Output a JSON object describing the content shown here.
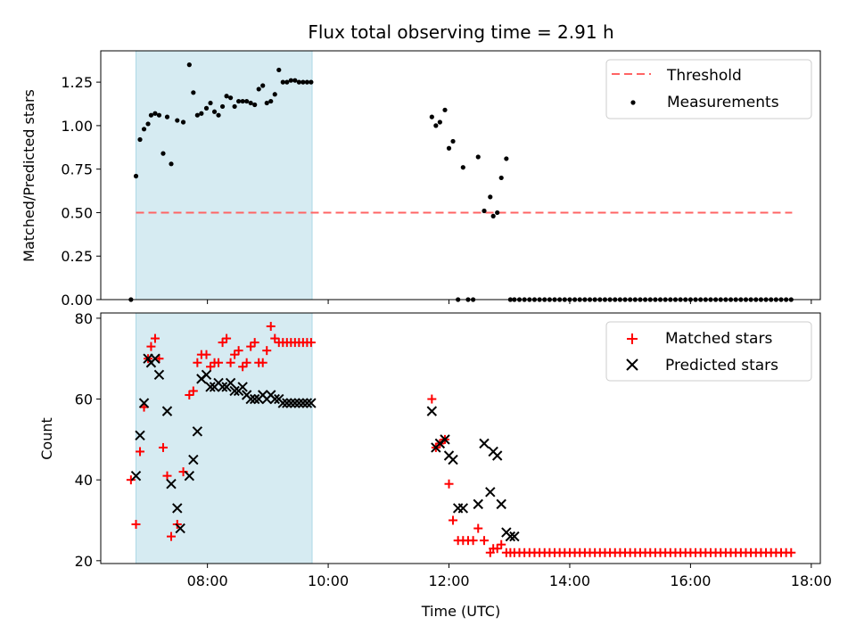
{
  "chart_data": [
    {
      "type": "scatter",
      "title": "Flux total observing time = 2.91 h",
      "xlabel": "",
      "ylabel": "Matched/Predicted stars",
      "xlim": [
        "06:14",
        "18:09"
      ],
      "ylim": [
        0,
        1.43
      ],
      "yticks": [
        "0.00",
        "0.25",
        "0.50",
        "0.75",
        "1.00",
        "1.25"
      ],
      "xticks": [
        "08:00",
        "10:00",
        "12:00",
        "14:00",
        "16:00",
        "18:00"
      ],
      "show_xticklabels": false,
      "shaded_interval": [
        "06:49",
        "09:44"
      ],
      "shaded_color": "#add8e6",
      "legend_position": "top-right",
      "threshold": {
        "name": "Threshold",
        "value": 0.5,
        "x_range": [
          "06:49",
          "17:41"
        ],
        "color": "#ff6464"
      },
      "series": [
        {
          "name": "Measurements",
          "color": "#000000",
          "marker": "dot",
          "x": [
            "06:44",
            "06:49",
            "06:53",
            "06:57",
            "07:01",
            "07:04",
            "07:08",
            "07:12",
            "07:16",
            "07:20",
            "07:24",
            "07:30",
            "07:36",
            "07:42",
            "07:46",
            "07:50",
            "07:54",
            "07:59",
            "08:03",
            "08:07",
            "08:11",
            "08:15",
            "08:19",
            "08:23",
            "08:27",
            "08:31",
            "08:35",
            "08:39",
            "08:43",
            "08:47",
            "08:51",
            "08:55",
            "08:59",
            "09:03",
            "09:07",
            "09:11",
            "09:15",
            "09:19",
            "09:23",
            "09:27",
            "09:31",
            "09:35",
            "09:39",
            "09:43",
            "11:43",
            "11:47",
            "11:51",
            "11:56",
            "12:00",
            "12:04",
            "12:09",
            "12:14",
            "12:19",
            "12:24",
            "12:29",
            "12:35",
            "12:41",
            "12:44",
            "12:48",
            "12:52",
            "12:57",
            "13:01",
            "13:05",
            "13:10",
            "13:15",
            "13:20",
            "13:25",
            "13:30",
            "13:35",
            "13:40",
            "13:45",
            "13:50",
            "13:55",
            "14:00",
            "14:05",
            "14:10",
            "14:15",
            "14:20",
            "14:25",
            "14:30",
            "14:35",
            "14:40",
            "14:45",
            "14:50",
            "14:55",
            "15:00",
            "15:05",
            "15:10",
            "15:15",
            "15:20",
            "15:25",
            "15:30",
            "15:35",
            "15:40",
            "15:45",
            "15:50",
            "15:55",
            "16:00",
            "16:05",
            "16:10",
            "16:15",
            "16:20",
            "16:25",
            "16:30",
            "16:35",
            "16:40",
            "16:45",
            "16:50",
            "16:55",
            "17:00",
            "17:05",
            "17:10",
            "17:15",
            "17:20",
            "17:25",
            "17:30",
            "17:35",
            "17:40"
          ],
          "y": [
            0.0,
            0.71,
            0.92,
            0.98,
            1.01,
            1.06,
            1.07,
            1.06,
            0.84,
            1.05,
            0.78,
            1.03,
            1.02,
            1.35,
            1.19,
            1.06,
            1.07,
            1.1,
            1.13,
            1.08,
            1.06,
            1.11,
            1.17,
            1.16,
            1.11,
            1.14,
            1.14,
            1.14,
            1.13,
            1.12,
            1.21,
            1.23,
            1.13,
            1.14,
            1.18,
            1.32,
            1.25,
            1.25,
            1.26,
            1.26,
            1.25,
            1.25,
            1.25,
            1.25,
            1.05,
            1.0,
            1.02,
            1.09,
            0.87,
            0.91,
            0.0,
            0.76,
            0.0,
            0.0,
            0.82,
            0.51,
            0.59,
            0.48,
            0.5,
            0.7,
            0.81,
            0.0,
            0.0,
            0.0,
            0.0,
            0.0,
            0.0,
            0.0,
            0.0,
            0.0,
            0.0,
            0.0,
            0.0,
            0.0,
            0.0,
            0.0,
            0.0,
            0.0,
            0.0,
            0.0,
            0.0,
            0.0,
            0.0,
            0.0,
            0.0,
            0.0,
            0.0,
            0.0,
            0.0,
            0.0,
            0.0,
            0.0,
            0.0,
            0.0,
            0.0,
            0.0,
            0.0,
            0.0,
            0.0,
            0.0,
            0.0,
            0.0,
            0.0,
            0.0,
            0.0,
            0.0,
            0.0,
            0.0,
            0.0,
            0.0,
            0.0,
            0.0,
            0.0,
            0.0,
            0.0,
            0.0,
            0.0,
            0.0
          ]
        }
      ]
    },
    {
      "type": "scatter",
      "title": "",
      "xlabel": "Time (UTC)",
      "ylabel": "Count",
      "xlim": [
        "06:14",
        "18:09"
      ],
      "ylim": [
        19.3,
        81.3
      ],
      "yticks": [
        "20",
        "40",
        "60",
        "80"
      ],
      "xticks": [
        "08:00",
        "10:00",
        "12:00",
        "14:00",
        "16:00",
        "18:00"
      ],
      "show_xticklabels": true,
      "shaded_interval": [
        "06:49",
        "09:44"
      ],
      "shaded_color": "#add8e6",
      "legend_position": "top-right",
      "series": [
        {
          "name": "Matched stars",
          "color": "#ff0000",
          "marker": "plus",
          "x": [
            "06:44",
            "06:49",
            "06:53",
            "06:57",
            "07:01",
            "07:04",
            "07:08",
            "07:12",
            "07:16",
            "07:20",
            "07:24",
            "07:30",
            "07:36",
            "07:42",
            "07:46",
            "07:50",
            "07:54",
            "07:59",
            "08:03",
            "08:07",
            "08:11",
            "08:15",
            "08:19",
            "08:23",
            "08:27",
            "08:31",
            "08:35",
            "08:39",
            "08:43",
            "08:47",
            "08:51",
            "08:55",
            "08:59",
            "09:03",
            "09:07",
            "09:11",
            "09:15",
            "09:19",
            "09:23",
            "09:27",
            "09:31",
            "09:35",
            "09:39",
            "09:43",
            "11:43",
            "11:47",
            "11:51",
            "11:56",
            "12:00",
            "12:04",
            "12:09",
            "12:14",
            "12:19",
            "12:24",
            "12:29",
            "12:35",
            "12:41",
            "12:44",
            "12:48",
            "12:52",
            "12:57",
            "13:01",
            "13:05",
            "13:10",
            "13:15",
            "13:20",
            "13:25",
            "13:30",
            "13:35",
            "13:40",
            "13:45",
            "13:50",
            "13:55",
            "14:00",
            "14:05",
            "14:10",
            "14:15",
            "14:20",
            "14:25",
            "14:30",
            "14:35",
            "14:40",
            "14:45",
            "14:50",
            "14:55",
            "15:00",
            "15:05",
            "15:10",
            "15:15",
            "15:20",
            "15:25",
            "15:30",
            "15:35",
            "15:40",
            "15:45",
            "15:50",
            "15:55",
            "16:00",
            "16:05",
            "16:10",
            "16:15",
            "16:20",
            "16:25",
            "16:30",
            "16:35",
            "16:40",
            "16:45",
            "16:50",
            "16:55",
            "17:00",
            "17:05",
            "17:10",
            "17:15",
            "17:20",
            "17:25",
            "17:30",
            "17:35",
            "17:40"
          ],
          "y": [
            40,
            29,
            47,
            58,
            70,
            73,
            75,
            70,
            48,
            41,
            26,
            29,
            42,
            61,
            62,
            69,
            71,
            71,
            68,
            69,
            69,
            74,
            75,
            69,
            71,
            72,
            68,
            69,
            73,
            74,
            69,
            69,
            72,
            78,
            75,
            74,
            74,
            74,
            74,
            74,
            74,
            74,
            74,
            74,
            60,
            48,
            49,
            50,
            39,
            30,
            25,
            25,
            25,
            25,
            28,
            25,
            22,
            23,
            23,
            24,
            22,
            22,
            22,
            22,
            22,
            22,
            22,
            22,
            22,
            22,
            22,
            22,
            22,
            22,
            22,
            22,
            22,
            22,
            22,
            22,
            22,
            22,
            22,
            22,
            22,
            22,
            22,
            22,
            22,
            22,
            22,
            22,
            22,
            22,
            22,
            22,
            22,
            22,
            22,
            22,
            22,
            22,
            22,
            22,
            22,
            22,
            22,
            22,
            22,
            22,
            22,
            22,
            22,
            22,
            22,
            22,
            22,
            22
          ]
        },
        {
          "name": "Predicted stars",
          "color": "#000000",
          "marker": "x",
          "x": [
            "06:49",
            "06:53",
            "06:57",
            "07:01",
            "07:04",
            "07:08",
            "07:12",
            "07:20",
            "07:24",
            "07:30",
            "07:33",
            "07:42",
            "07:46",
            "07:50",
            "07:54",
            "07:59",
            "08:03",
            "08:07",
            "08:11",
            "08:15",
            "08:19",
            "08:23",
            "08:27",
            "08:31",
            "08:35",
            "08:39",
            "08:43",
            "08:47",
            "08:51",
            "08:55",
            "08:59",
            "09:03",
            "09:07",
            "09:11",
            "09:15",
            "09:19",
            "09:23",
            "09:27",
            "09:31",
            "09:35",
            "09:39",
            "09:43",
            "11:43",
            "11:47",
            "11:51",
            "11:56",
            "12:00",
            "12:04",
            "12:09",
            "12:14",
            "12:29",
            "12:35",
            "12:41",
            "12:44",
            "12:48",
            "12:52",
            "12:57",
            "13:01",
            "13:05"
          ],
          "y": [
            41,
            51,
            59,
            70,
            69,
            70,
            66,
            57,
            39,
            33,
            28,
            41,
            45,
            52,
            65,
            66,
            63,
            63,
            64,
            63,
            63,
            64,
            62,
            62,
            63,
            61,
            60,
            60,
            60,
            61,
            60,
            61,
            60,
            60,
            59,
            59,
            59,
            59,
            59,
            59,
            59,
            59,
            57,
            48,
            49,
            50,
            46,
            45,
            33,
            33,
            34,
            49,
            37,
            47,
            46,
            34,
            27,
            26,
            26
          ]
        }
      ]
    }
  ]
}
